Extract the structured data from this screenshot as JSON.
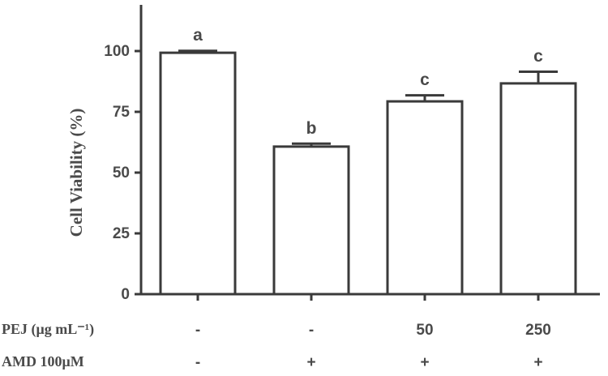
{
  "chart_data": {
    "type": "bar",
    "y_label": "Cell Viability (%)",
    "values": [
      99.3,
      60.7,
      79.3,
      86.7
    ],
    "errors": [
      0.8,
      1.2,
      2.5,
      4.8
    ],
    "annotations": [
      "a",
      "b",
      "c",
      "c"
    ],
    "rows": [
      {
        "label": "PEJ (μg mL⁻¹)",
        "values": [
          "-",
          "-",
          "50",
          "250"
        ]
      },
      {
        "label": "AMD 100μM",
        "values": [
          "-",
          "+",
          "+",
          "+"
        ]
      }
    ],
    "color": "#ffffff",
    "edge_color": "#3a3a3a",
    "ylim": [
      0,
      119
    ],
    "yticks": [
      0,
      25,
      50,
      75,
      100
    ]
  }
}
